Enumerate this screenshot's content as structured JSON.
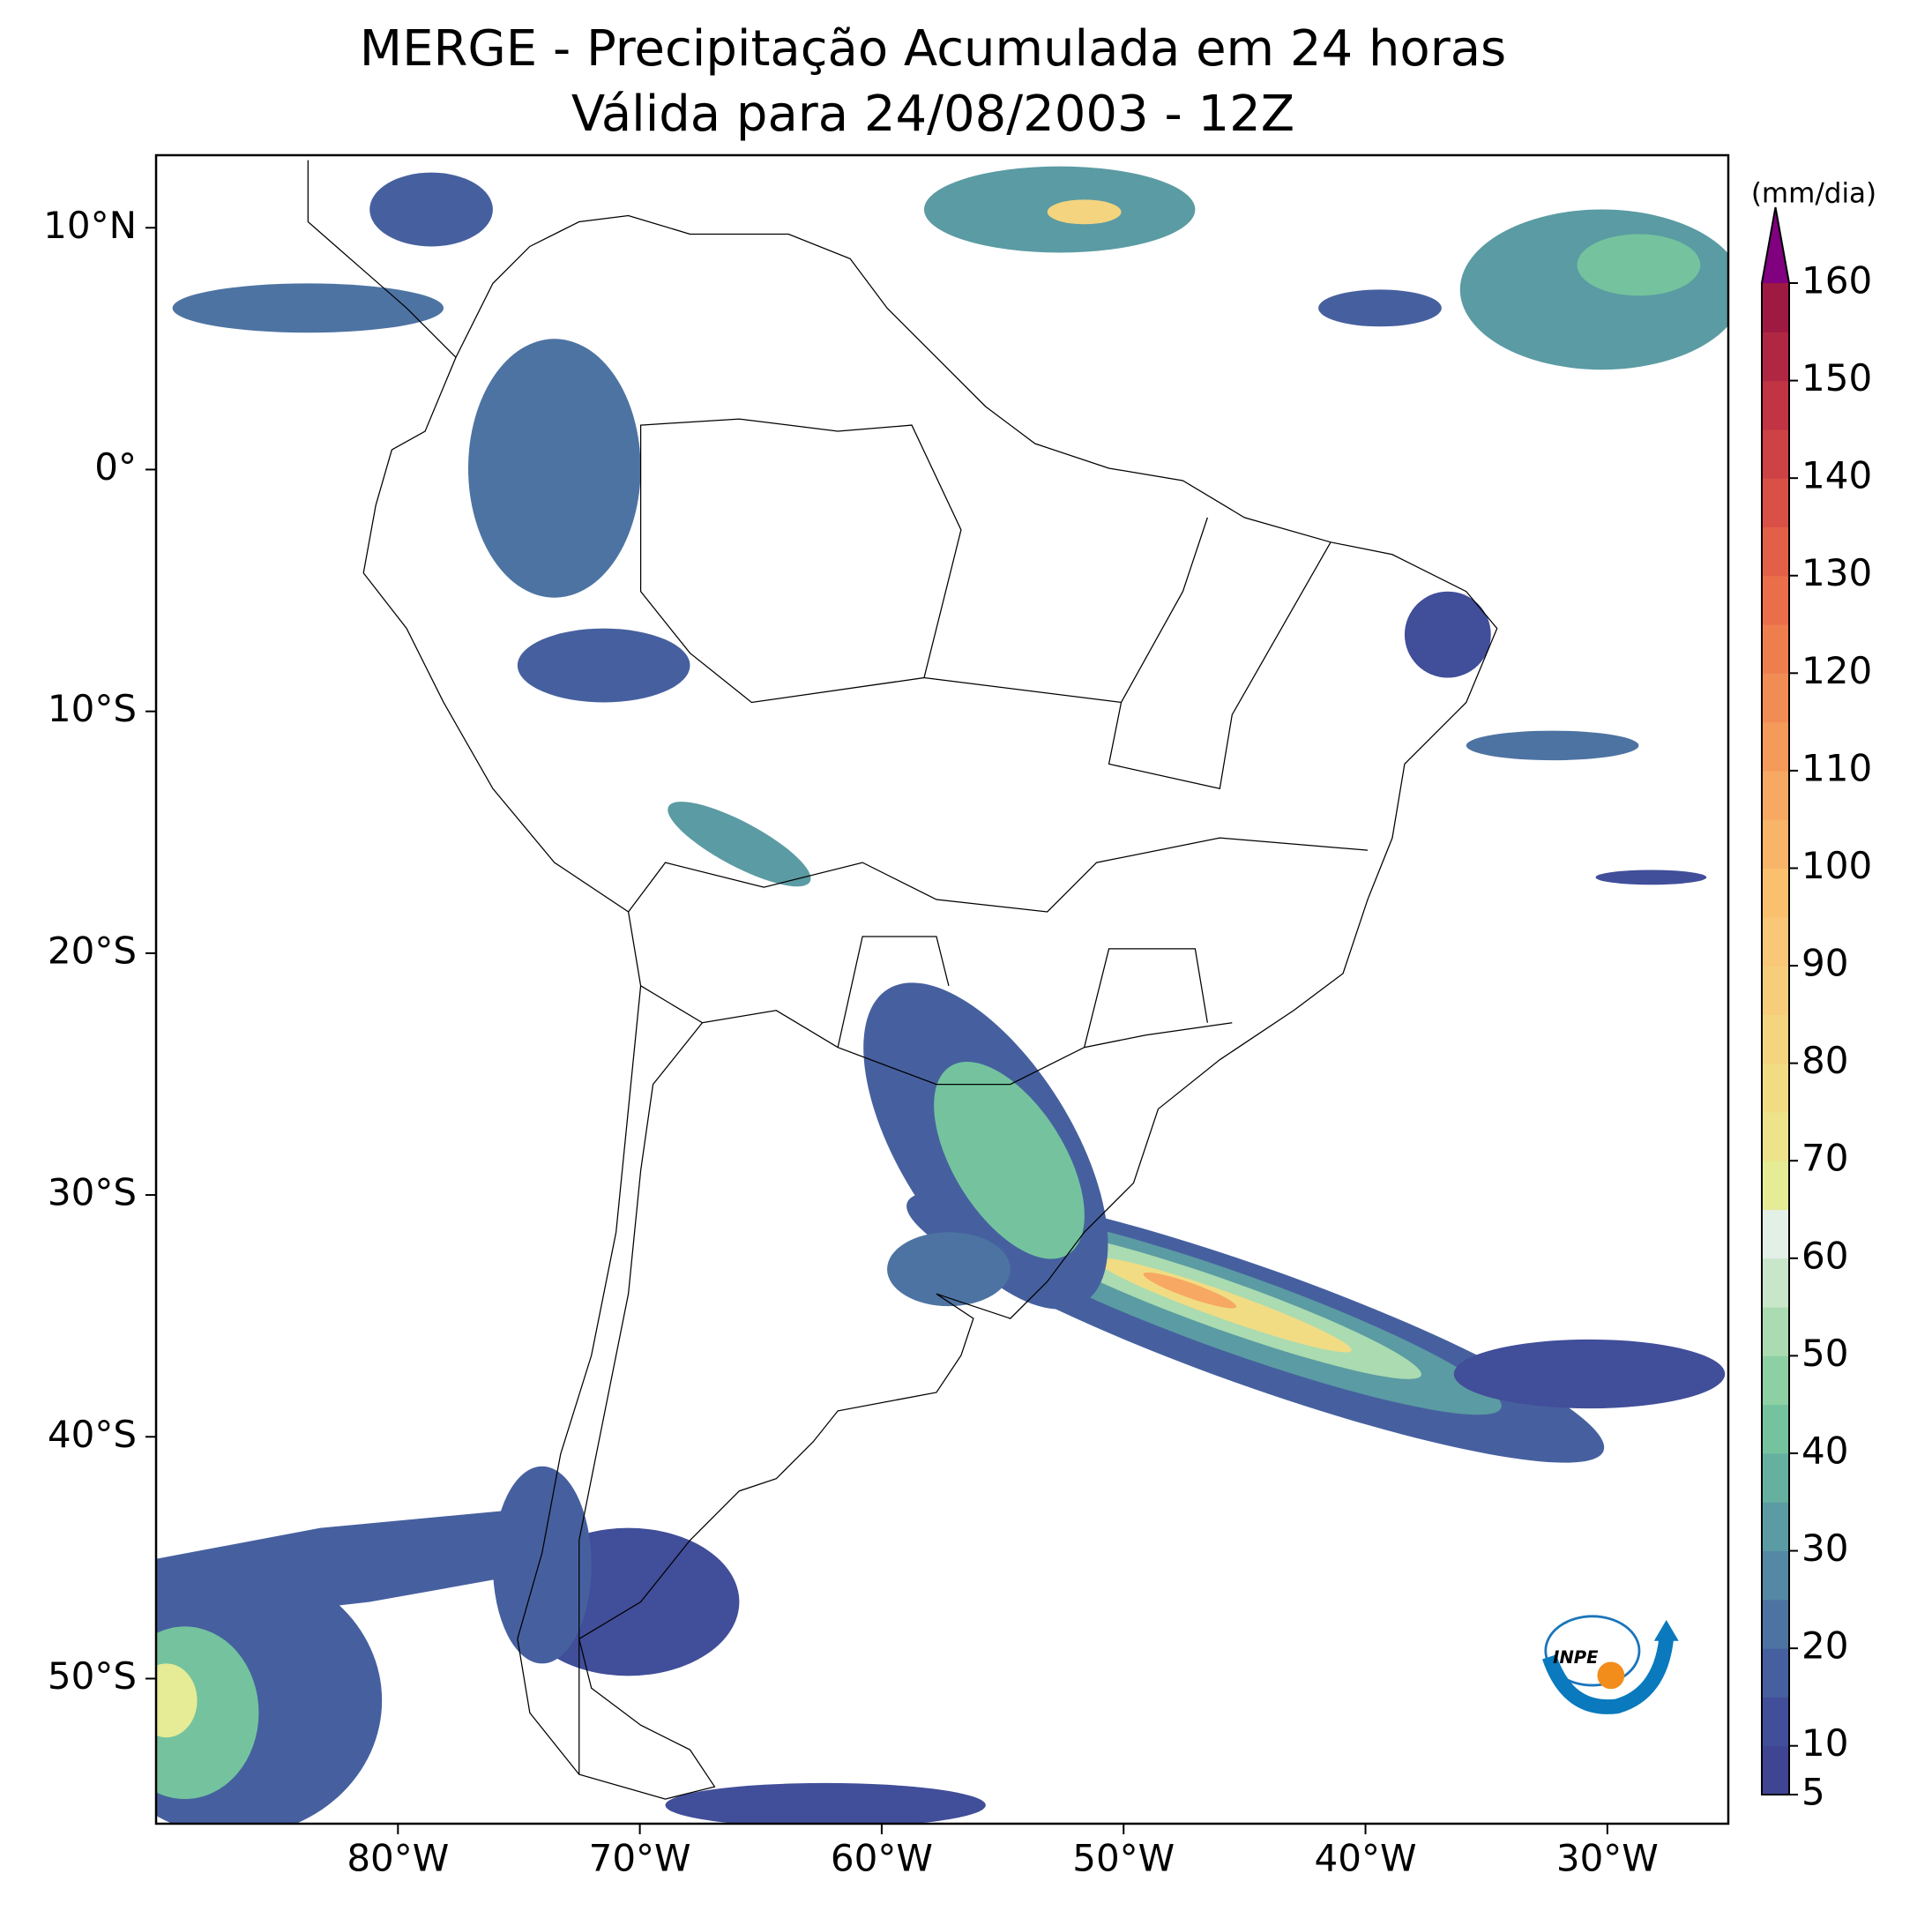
{
  "title": "MERGE - Precipitação Acumulada em 24 horas",
  "subtitle": "Válida para 24/08/2003 - 12Z",
  "map": {
    "lonlim": [
      -90,
      -25
    ],
    "latlim": [
      -56,
      13
    ],
    "lon_ticks": [
      {
        "value": -80,
        "label": "80°W"
      },
      {
        "value": -70,
        "label": "70°W"
      },
      {
        "value": -60,
        "label": "60°W"
      },
      {
        "value": -50,
        "label": "50°W"
      },
      {
        "value": -40,
        "label": "40°W"
      },
      {
        "value": -30,
        "label": "30°W"
      }
    ],
    "lat_ticks": [
      {
        "value": 10,
        "label": "10°N"
      },
      {
        "value": 0,
        "label": "0°"
      },
      {
        "value": -10,
        "label": "10°S"
      },
      {
        "value": -20,
        "label": "20°S"
      },
      {
        "value": -30,
        "label": "30°S"
      },
      {
        "value": -40,
        "label": "40°S"
      },
      {
        "value": -50,
        "label": "50°S"
      }
    ]
  },
  "colorbar": {
    "label": "(mm/dia)",
    "lim": [
      5,
      160
    ],
    "ticks": [
      5,
      10,
      20,
      30,
      40,
      50,
      60,
      70,
      80,
      90,
      100,
      110,
      120,
      130,
      140,
      150,
      160
    ],
    "levels": [
      5,
      10,
      15,
      20,
      25,
      30,
      35,
      40,
      45,
      50,
      55,
      60,
      65,
      70,
      75,
      80,
      85,
      90,
      95,
      100,
      105,
      110,
      115,
      120,
      125,
      130,
      135,
      140,
      145,
      150,
      155,
      160
    ],
    "colors": [
      "#3f4592",
      "#414e99",
      "#46609f",
      "#4d73a2",
      "#5488a4",
      "#5b9ba3",
      "#66b0a0",
      "#74c39e",
      "#8dd0a4",
      "#aadbb1",
      "#c8e6c9",
      "#e2f0e8",
      "#e6eb96",
      "#ede38a",
      "#f1dc84",
      "#f4d47e",
      "#f7cd7b",
      "#f9c777",
      "#fbc06e",
      "#f8b468",
      "#f7a862",
      "#f49a5b",
      "#f28c55",
      "#ef7e4f",
      "#ea6e4a",
      "#e26048",
      "#d95146",
      "#cc4245",
      "#c03443",
      "#b02743",
      "#9e1a43"
    ],
    "extend_color": "#800080"
  },
  "logo_text": "INPE"
}
